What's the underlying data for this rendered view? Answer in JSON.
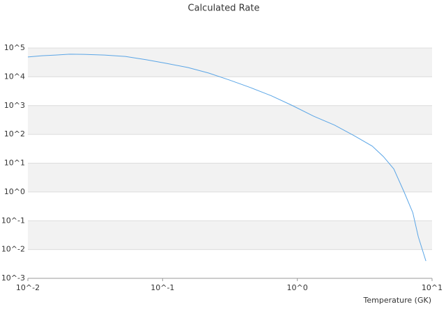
{
  "chart_data": {
    "type": "line",
    "title": "Calculated Rate",
    "x_label": "Temperature (GK)",
    "xscale": "log",
    "yscale": "log",
    "grid": true,
    "xlim": [
      0.01,
      10
    ],
    "ylim": [
      0.001,
      100000
    ],
    "xticks": [
      {
        "value": 0.01,
        "label": "10^-2"
      },
      {
        "value": 0.1,
        "label": "10^-1"
      },
      {
        "value": 1,
        "label": "10^0"
      },
      {
        "value": 10,
        "label": "10^1"
      }
    ],
    "yticks": [
      {
        "value": 0.001,
        "label": "10^-3"
      },
      {
        "value": 0.01,
        "label": "10^-2"
      },
      {
        "value": 0.1,
        "label": "10^-1"
      },
      {
        "value": 1,
        "label": "10^0"
      },
      {
        "value": 10,
        "label": "10^1"
      },
      {
        "value": 100,
        "label": "10^2"
      },
      {
        "value": 1000,
        "label": "10^3"
      },
      {
        "value": 10000,
        "label": "10^4"
      },
      {
        "value": 100000,
        "label": "10^5"
      }
    ],
    "x": [
      0.01,
      0.0127,
      0.0161,
      0.0204,
      0.0259,
      0.037,
      0.0529,
      0.0758,
      0.108,
      0.154,
      0.22,
      0.314,
      0.45,
      0.64,
      0.92,
      1.32,
      1.89,
      2.7,
      3.6,
      4.35,
      5.2,
      6.2,
      7.2,
      7.9,
      9.0
    ],
    "series": [
      {
        "color": "#5aa5e6",
        "values": [
          49000,
          54000,
          57000,
          61000,
          60000,
          57000,
          51000,
          39000,
          29000,
          21000,
          13500,
          7700,
          4200,
          2200,
          1000,
          430,
          210,
          85,
          39,
          17,
          6.3,
          1.0,
          0.19,
          0.028,
          0.004
        ]
      }
    ]
  }
}
